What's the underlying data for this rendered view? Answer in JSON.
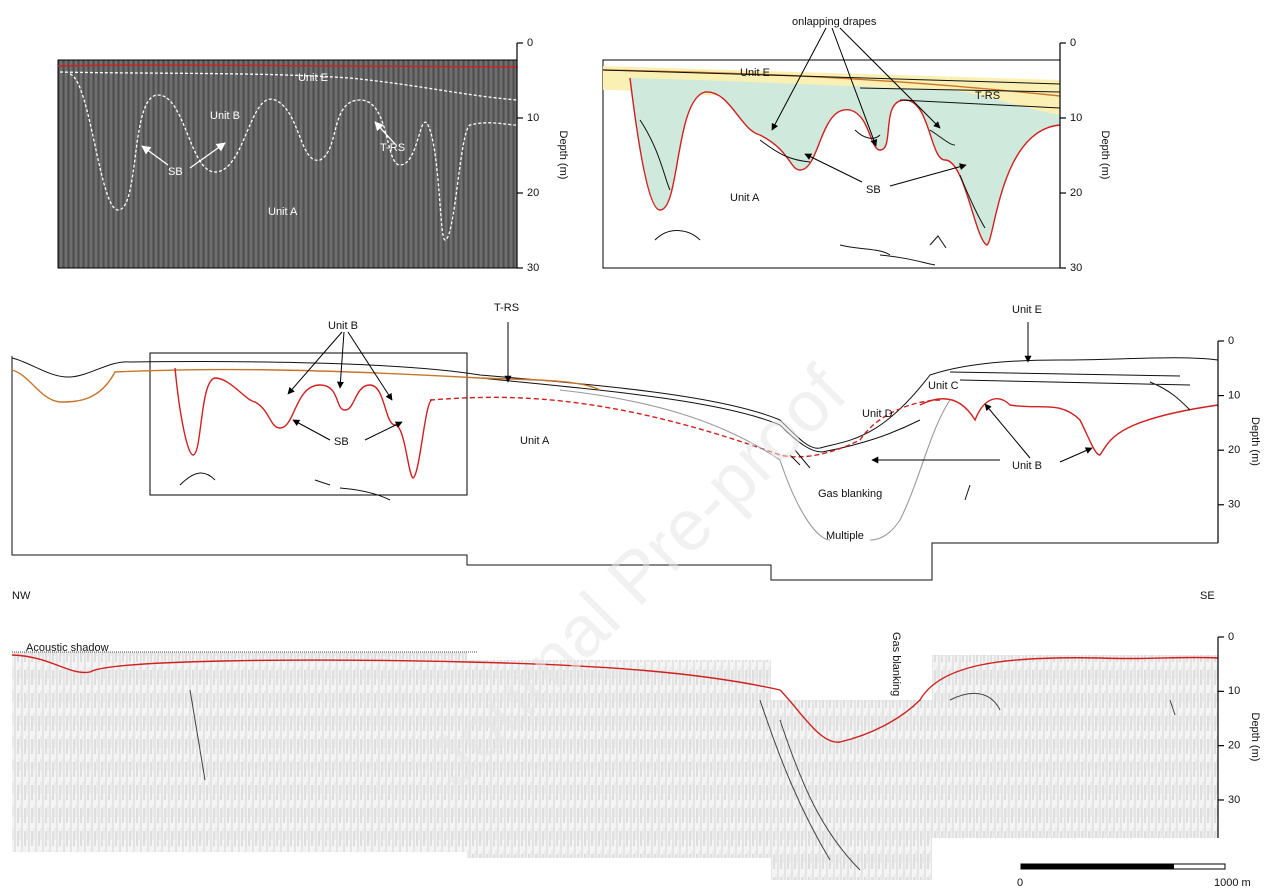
{
  "panels": [
    {
      "labels": [
        "Unit E",
        "Unit B",
        "T-RS",
        "SB",
        "Unit A"
      ],
      "depth_axis": {
        "title": "Depth (m)",
        "range": [
          0,
          30
        ],
        "ticks": [
          0,
          10,
          20,
          30
        ]
      }
    },
    {
      "labels": [
        "onlapping drapes",
        "Unit E",
        "T-RS",
        "Unit A",
        "SB"
      ],
      "depth_axis": {
        "title": "Depth (m)",
        "range": [
          0,
          30
        ],
        "ticks": [
          0,
          10,
          20,
          30
        ]
      }
    },
    {
      "labels": [
        "T-RS",
        "Unit B",
        "Unit E",
        "Unit C",
        "Unit D",
        "SB",
        "Unit A",
        "Unit B",
        "Gas blanking",
        "Multiple"
      ],
      "orientation": [
        "NW",
        "SE"
      ],
      "depth_axis": {
        "title": "Depth (m)",
        "range": [
          0,
          37
        ],
        "ticks": [
          0,
          10,
          20,
          30
        ]
      }
    },
    {
      "labels": [
        "Acoustic shadow",
        "Gas blanking"
      ],
      "scale_bar": {
        "start": "0",
        "end": "1000 m"
      },
      "depth_axis": {
        "title": "Depth (m)",
        "range": [
          0,
          37
        ],
        "ticks": [
          0,
          10,
          20,
          30
        ]
      }
    }
  ],
  "watermark": "Journal Pre-proof"
}
